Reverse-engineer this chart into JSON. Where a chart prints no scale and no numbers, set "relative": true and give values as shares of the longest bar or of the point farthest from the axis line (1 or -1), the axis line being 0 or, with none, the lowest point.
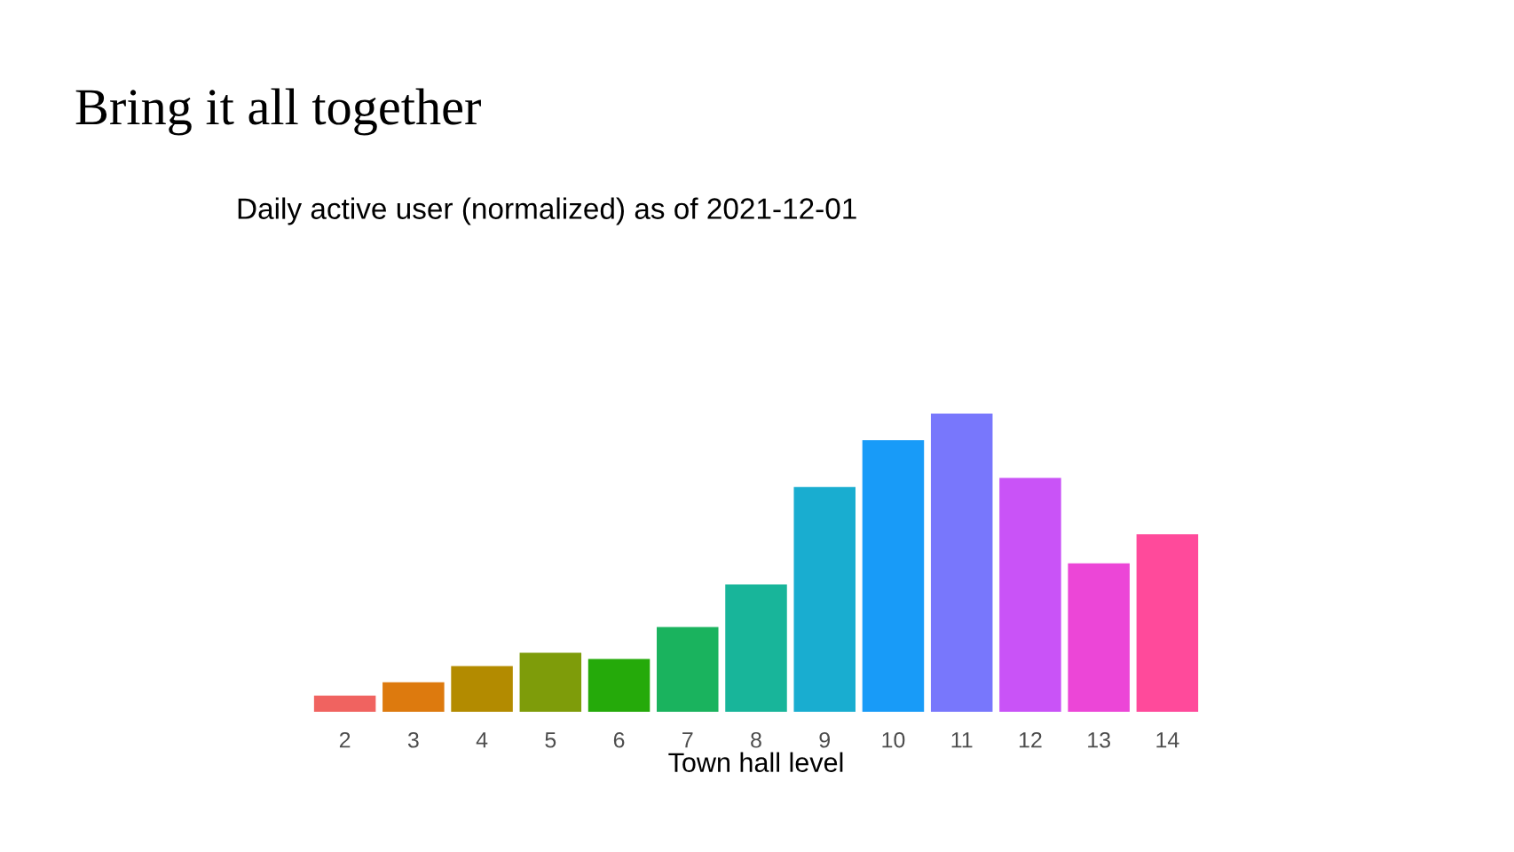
{
  "chart_data": {
    "type": "bar",
    "title": "Bring it all together",
    "subtitle": "Daily active user (normalized) as of 2021-12-01",
    "xlabel": "Town hall level",
    "categories": [
      "2",
      "3",
      "4",
      "5",
      "6",
      "7",
      "8",
      "9",
      "10",
      "11",
      "12",
      "13",
      "14"
    ],
    "values": [
      0.054,
      0.099,
      0.153,
      0.198,
      0.177,
      0.284,
      0.427,
      0.754,
      0.911,
      1,
      0.784,
      0.498,
      0.595
    ],
    "colors": [
      "#f06360",
      "#dd7a0e",
      "#b38b00",
      "#7e9c0a",
      "#25aa0a",
      "#1ab35e",
      "#18b59a",
      "#19add0",
      "#189bf8",
      "#7877fc",
      "#c953f7",
      "#ec46d7",
      "#ff4a9b"
    ],
    "relative": true,
    "grid": false,
    "legend": false
  }
}
